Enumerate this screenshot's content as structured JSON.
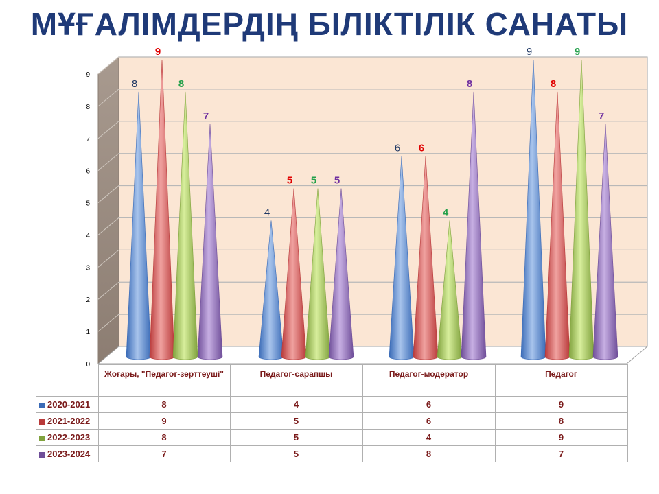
{
  "title": "МҰҒАЛІМДЕРДІҢ БІЛІКТІЛІК САНАТЫ",
  "colors": {
    "title": "#1f3a78",
    "wall": "#fbe6d4",
    "side_wall": "#9a8b80",
    "grid": "#b8b8b8",
    "series_dark": [
      "#3a6bb7",
      "#b93a3a",
      "#80a23d",
      "#6f4e99"
    ],
    "series_light": [
      "#a8c4ec",
      "#f0a2a0",
      "#d7ee9c",
      "#c7afe3"
    ],
    "label_colors": [
      "#1f3864",
      "#e00000",
      "#22a04a",
      "#7030a0"
    ],
    "label_bold": [
      false,
      true,
      true,
      true
    ]
  },
  "chart_data": {
    "type": "bar",
    "title": "МҰҒАЛІМДЕРДІҢ БІЛІКТІЛІК САНАТЫ",
    "categories": [
      "Жоғары, \"Педагог-зерттеуші\"",
      "Педагог-сарапшы",
      "Педагог-модератор",
      "Педагог"
    ],
    "series": [
      {
        "name": "2020-2021",
        "values": [
          8,
          4,
          6,
          9
        ]
      },
      {
        "name": "2021-2022",
        "values": [
          9,
          5,
          6,
          8
        ]
      },
      {
        "name": "2022-2023",
        "values": [
          8,
          5,
          4,
          9
        ]
      },
      {
        "name": "2023-2024",
        "values": [
          7,
          5,
          8,
          7
        ]
      }
    ],
    "ylim": [
      0,
      9
    ],
    "yticks": [
      0,
      1,
      2,
      3,
      4,
      5,
      6,
      7,
      8,
      9
    ],
    "grid": true,
    "data_labels": true,
    "data_table": true,
    "legend": "in data table",
    "shape": "3d-cone"
  }
}
